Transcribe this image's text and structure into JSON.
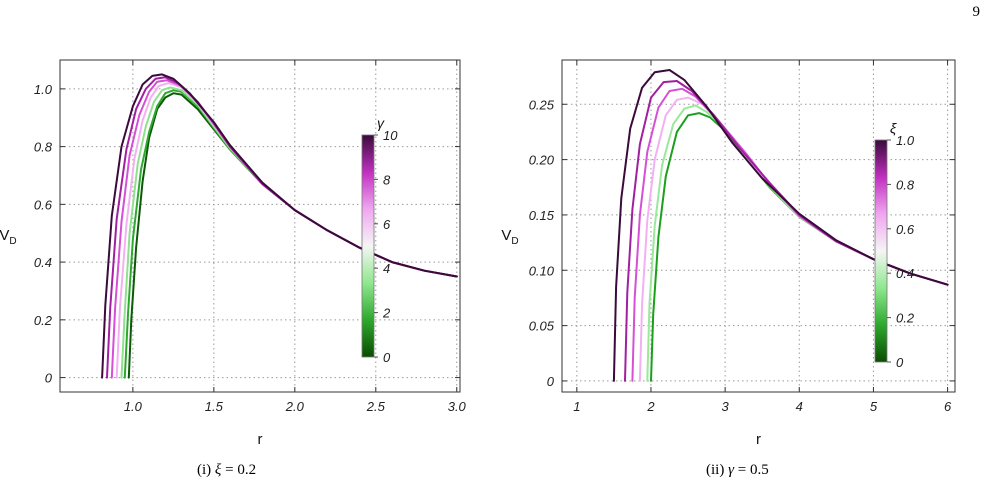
{
  "page_number": "9",
  "panels": [
    {
      "caption": {
        "label": "(i)",
        "variable": "ξ",
        "value": "= 0.2"
      },
      "chart_data": {
        "type": "line",
        "xlabel": "r",
        "ylabel": "V_D",
        "xlim": [
          0.55,
          3.02
        ],
        "ylim": [
          -0.05,
          1.1
        ],
        "xticks": [
          1.0,
          1.5,
          2.0,
          2.5,
          3.0
        ],
        "xtick_labels": [
          "1.0",
          "1.5",
          "2.0",
          "2.5",
          "3.0"
        ],
        "yticks": [
          0,
          0.2,
          0.4,
          0.6,
          0.8,
          1.0
        ],
        "ytick_labels": [
          "0",
          "0.2",
          "0.4",
          "0.6",
          "0.8",
          "1.0"
        ],
        "grid": true,
        "grid_style": "dotted",
        "legend": {
          "type": "colorbar",
          "title": "γ",
          "placement": "right-center",
          "ticks": [
            "0",
            "2",
            "4",
            "6",
            "8",
            "10"
          ],
          "colors": [
            "#0a4d00",
            "#2ea82e",
            "#8ee88e",
            "#f5f5f5",
            "#f0a6f0",
            "#c030c0",
            "#3a0a3a"
          ]
        },
        "series": [
          {
            "color": "#0a5a05",
            "x": [
              0.975,
              0.99,
              1.02,
              1.06,
              1.1,
              1.15,
              1.2,
              1.25,
              1.3,
              1.4,
              1.5,
              1.6,
              1.8,
              2.0,
              2.2,
              2.4,
              2.6,
              2.8,
              3.0
            ],
            "y": [
              0,
              0.2,
              0.45,
              0.68,
              0.83,
              0.93,
              0.97,
              0.985,
              0.98,
              0.93,
              0.86,
              0.79,
              0.67,
              0.58,
              0.51,
              0.45,
              0.4,
              0.37,
              0.35
            ]
          },
          {
            "color": "#2ea82e",
            "x": [
              0.95,
              0.97,
              1.0,
              1.05,
              1.1,
              1.15,
              1.2,
              1.25,
              1.3,
              1.4,
              1.5,
              1.6,
              1.8,
              2.0,
              2.2,
              2.4,
              2.6,
              2.8,
              3.0
            ],
            "y": [
              0,
              0.22,
              0.48,
              0.72,
              0.85,
              0.94,
              0.985,
              0.995,
              0.99,
              0.94,
              0.865,
              0.79,
              0.67,
              0.58,
              0.51,
              0.45,
              0.4,
              0.37,
              0.35
            ]
          },
          {
            "color": "#8fe08f",
            "x": [
              0.93,
              0.95,
              0.98,
              1.03,
              1.08,
              1.13,
              1.18,
              1.23,
              1.3,
              1.4,
              1.5,
              1.6,
              1.8,
              2.0,
              2.2,
              2.4,
              2.6,
              2.8,
              3.0
            ],
            "y": [
              0,
              0.23,
              0.5,
              0.74,
              0.87,
              0.955,
              0.995,
              1.005,
              0.995,
              0.945,
              0.87,
              0.795,
              0.67,
              0.58,
              0.51,
              0.45,
              0.4,
              0.37,
              0.35
            ]
          },
          {
            "color": "#f3b0f3",
            "x": [
              0.9,
              0.92,
              0.96,
              1.01,
              1.06,
              1.11,
              1.16,
              1.22,
              1.3,
              1.4,
              1.5,
              1.6,
              1.8,
              2.0,
              2.2,
              2.4,
              2.6,
              2.8,
              3.0
            ],
            "y": [
              0,
              0.24,
              0.53,
              0.76,
              0.89,
              0.97,
              1.01,
              1.02,
              1.005,
              0.95,
              0.875,
              0.8,
              0.67,
              0.58,
              0.51,
              0.45,
              0.4,
              0.37,
              0.35
            ]
          },
          {
            "color": "#d64fd6",
            "x": [
              0.87,
              0.89,
              0.93,
              0.98,
              1.04,
              1.1,
              1.15,
              1.21,
              1.3,
              1.4,
              1.5,
              1.6,
              1.8,
              2.0,
              2.2,
              2.4,
              2.6,
              2.8,
              3.0
            ],
            "y": [
              0,
              0.24,
              0.54,
              0.77,
              0.91,
              0.99,
              1.025,
              1.03,
              1.01,
              0.955,
              0.88,
              0.8,
              0.67,
              0.58,
              0.51,
              0.45,
              0.4,
              0.37,
              0.35
            ]
          },
          {
            "color": "#a020a0",
            "x": [
              0.84,
              0.86,
              0.9,
              0.96,
              1.02,
              1.08,
              1.14,
              1.2,
              1.28,
              1.4,
              1.5,
              1.6,
              1.8,
              2.0,
              2.2,
              2.4,
              2.6,
              2.8,
              3.0
            ],
            "y": [
              0,
              0.24,
              0.55,
              0.79,
              0.93,
              1.0,
              1.035,
              1.04,
              1.02,
              0.955,
              0.88,
              0.8,
              0.67,
              0.58,
              0.51,
              0.45,
              0.4,
              0.37,
              0.35
            ]
          },
          {
            "color": "#3a0a3a",
            "x": [
              0.81,
              0.83,
              0.87,
              0.93,
              1.0,
              1.06,
              1.12,
              1.18,
              1.25,
              1.35,
              1.5,
              1.6,
              1.8,
              2.0,
              2.2,
              2.4,
              2.6,
              2.8,
              3.0
            ],
            "y": [
              0,
              0.25,
              0.56,
              0.8,
              0.94,
              1.015,
              1.045,
              1.05,
              1.035,
              0.985,
              0.885,
              0.805,
              0.675,
              0.58,
              0.51,
              0.45,
              0.4,
              0.37,
              0.35
            ]
          }
        ]
      }
    },
    {
      "caption": {
        "label": "(ii)",
        "variable": "γ",
        "value": "= 0.5"
      },
      "chart_data": {
        "type": "line",
        "xlabel": "r",
        "ylabel": "V_D",
        "xlim": [
          0.8,
          6.1
        ],
        "ylim": [
          -0.01,
          0.29
        ],
        "xticks": [
          1,
          2,
          3,
          4,
          5,
          6
        ],
        "xtick_labels": [
          "1",
          "2",
          "3",
          "4",
          "5",
          "6"
        ],
        "yticks": [
          0,
          0.05,
          0.1,
          0.15,
          0.2,
          0.25
        ],
        "ytick_labels": [
          "0",
          "0.05",
          "0.10",
          "0.15",
          "0.20",
          "0.25"
        ],
        "grid": true,
        "grid_style": "dotted",
        "legend": {
          "type": "colorbar",
          "title": "ξ",
          "placement": "right-center",
          "ticks": [
            "0",
            "0.2",
            "0.4",
            "0.6",
            "0.8",
            "1.0"
          ],
          "colors": [
            "#0a4d00",
            "#2ea82e",
            "#8ee88e",
            "#f5f5f5",
            "#f0a6f0",
            "#c030c0",
            "#3a0a3a"
          ]
        },
        "series": [
          {
            "color": "#1aa01a",
            "x": [
              2.0,
              2.03,
              2.1,
              2.2,
              2.35,
              2.5,
              2.65,
              2.8,
              3.0,
              3.3,
              3.6,
              4.0,
              4.5,
              5.0,
              5.5,
              6.0
            ],
            "y": [
              0,
              0.06,
              0.13,
              0.185,
              0.225,
              0.24,
              0.242,
              0.238,
              0.226,
              0.2,
              0.175,
              0.148,
              0.126,
              0.11,
              0.097,
              0.087
            ]
          },
          {
            "color": "#9ae89a",
            "x": [
              1.95,
              1.98,
              2.05,
              2.15,
              2.3,
              2.45,
              2.6,
              2.75,
              3.0,
              3.3,
              3.6,
              4.0,
              4.5,
              5.0,
              5.5,
              6.0
            ],
            "y": [
              0,
              0.07,
              0.14,
              0.195,
              0.232,
              0.246,
              0.249,
              0.243,
              0.228,
              0.201,
              0.176,
              0.148,
              0.126,
              0.11,
              0.097,
              0.087
            ]
          },
          {
            "color": "#f3b0f3",
            "x": [
              1.85,
              1.88,
              1.95,
              2.05,
              2.2,
              2.35,
              2.5,
              2.7,
              2.95,
              3.3,
              3.6,
              4.0,
              4.5,
              5.0,
              5.5,
              6.0
            ],
            "y": [
              0,
              0.07,
              0.145,
              0.2,
              0.24,
              0.254,
              0.256,
              0.25,
              0.232,
              0.202,
              0.177,
              0.149,
              0.126,
              0.11,
              0.097,
              0.087
            ]
          },
          {
            "color": "#d64fd6",
            "x": [
              1.75,
              1.78,
              1.85,
              1.95,
              2.1,
              2.25,
              2.42,
              2.6,
              2.9,
              3.3,
              3.6,
              4.0,
              4.5,
              5.0,
              5.5,
              6.0
            ],
            "y": [
              0,
              0.075,
              0.15,
              0.207,
              0.247,
              0.262,
              0.264,
              0.257,
              0.236,
              0.204,
              0.178,
              0.149,
              0.126,
              0.11,
              0.097,
              0.087
            ]
          },
          {
            "color": "#a020a0",
            "x": [
              1.65,
              1.68,
              1.75,
              1.85,
              2.0,
              2.17,
              2.35,
              2.55,
              2.85,
              3.2,
              3.6,
              4.0,
              4.5,
              5.0,
              5.5,
              6.0
            ],
            "y": [
              0,
              0.08,
              0.155,
              0.214,
              0.256,
              0.27,
              0.271,
              0.262,
              0.24,
              0.21,
              0.179,
              0.15,
              0.126,
              0.11,
              0.097,
              0.087
            ]
          },
          {
            "color": "#3a0a3a",
            "x": [
              1.5,
              1.53,
              1.6,
              1.72,
              1.88,
              2.05,
              2.25,
              2.45,
              2.75,
              3.1,
              3.5,
              4.0,
              4.5,
              5.0,
              5.5,
              6.0
            ],
            "y": [
              0,
              0.085,
              0.165,
              0.228,
              0.265,
              0.279,
              0.281,
              0.272,
              0.248,
              0.215,
              0.183,
              0.151,
              0.127,
              0.11,
              0.097,
              0.087
            ]
          }
        ]
      }
    }
  ]
}
